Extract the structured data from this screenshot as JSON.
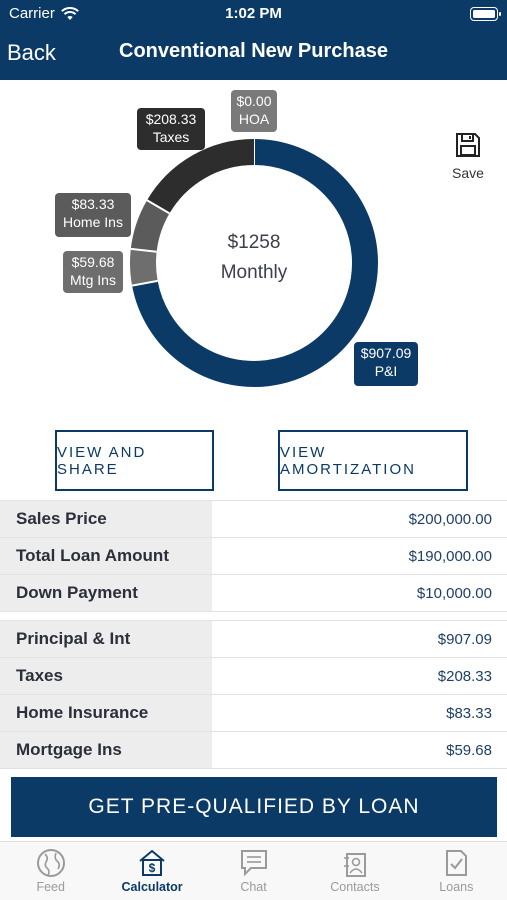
{
  "status_bar": {
    "carrier": "Carrier",
    "time": "1:02 PM"
  },
  "header": {
    "back_label": "Back",
    "title": "Conventional New Purchase"
  },
  "summary": {
    "total": "$1258",
    "period": "Monthly",
    "segments": [
      {
        "name": "P&I",
        "amount": "$907.09",
        "value": 907.09,
        "color": "#0b3a66"
      },
      {
        "name": "Mtg Ins",
        "amount": "$59.68",
        "value": 59.68,
        "color": "#6e6e6e"
      },
      {
        "name": "Home Ins",
        "amount": "$83.33",
        "value": 83.33,
        "color": "#5b5b5b"
      },
      {
        "name": "Taxes",
        "amount": "$208.33",
        "value": 208.33,
        "color": "#2d2d2d"
      },
      {
        "name": "HOA",
        "amount": "$0.00",
        "value": 0,
        "color": "#7a7a7a"
      }
    ]
  },
  "save": {
    "label": "Save",
    "icon": "floppy-disk-icon"
  },
  "actions": {
    "view_share": "VIEW AND SHARE",
    "view_amortization": "VIEW AMORTIZATION"
  },
  "loan_table": [
    {
      "label": "Sales Price",
      "value": "$200,000.00"
    },
    {
      "label": "Total Loan Amount",
      "value": "$190,000.00"
    },
    {
      "label": "Down Payment",
      "value": "$10,000.00"
    }
  ],
  "payment_table": [
    {
      "label": "Principal & Int",
      "value": "$907.09"
    },
    {
      "label": "Taxes",
      "value": "$208.33"
    },
    {
      "label": "Home Insurance",
      "value": "$83.33"
    },
    {
      "label": "Mortgage Ins",
      "value": "$59.68"
    }
  ],
  "cta": "GET PRE-QUALIFIED BY LOAN",
  "tabs": [
    {
      "label": "Feed",
      "icon": "globe-icon",
      "active": false
    },
    {
      "label": "Calculator",
      "icon": "calculator-dollar-icon",
      "active": true
    },
    {
      "label": "Chat",
      "icon": "chat-bubble-icon",
      "active": false
    },
    {
      "label": "Contacts",
      "icon": "contacts-icon",
      "active": false
    },
    {
      "label": "Loans",
      "icon": "document-check-icon",
      "active": false
    }
  ],
  "colors": {
    "primary": "#0b3a66",
    "inactive_tab": "#9a9a9a",
    "label_bg": "#ededed"
  }
}
